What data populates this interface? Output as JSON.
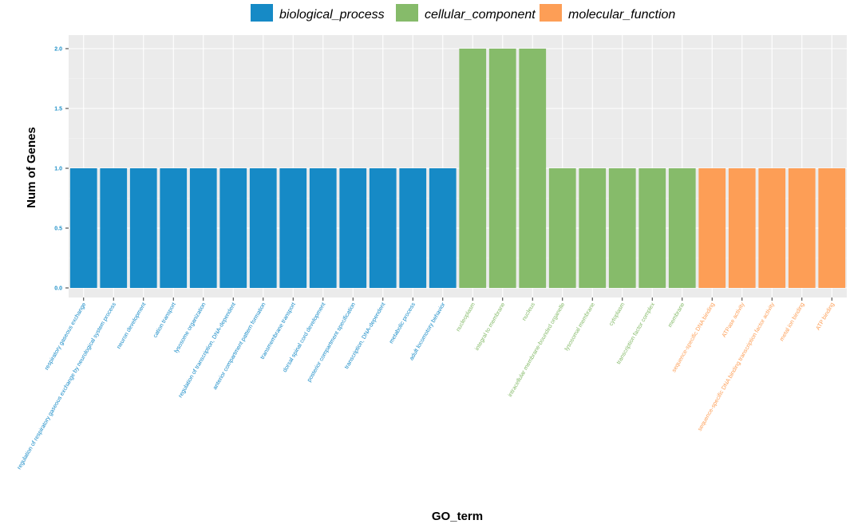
{
  "colors": {
    "panel_bg": "#ebebeb",
    "grid_major": "#ffffff",
    "grid_minor": "#f5f5f5",
    "biological_process": "#168ac6",
    "cellular_component": "#86bb6a",
    "molecular_function": "#fd9e56"
  },
  "chart_data": {
    "type": "bar",
    "title": "",
    "xlabel": "GO_term",
    "ylabel": "Num of Genes",
    "ylim": [
      0,
      2.0
    ],
    "yticks": [
      "0.0",
      "0.5",
      "1.0",
      "1.5",
      "2.0"
    ],
    "grid": true,
    "legend_position": "top",
    "legend": [
      "biological_process",
      "cellular_component",
      "molecular_function"
    ],
    "categories": [
      "respiratory gaseous exchange",
      "regulation of respiratory gaseous exchange by neurological system process",
      "neuron development",
      "cation transport",
      "lysosome organization",
      "regulation of transcription, DNA-dependent",
      "anterior compartment pattern formation",
      "transmembrane transport",
      "dorsal spinal cord development",
      "posterior compartment specification",
      "transcription, DNA-dependent",
      "metabolic process",
      "adult locomotory behavior",
      "nucleoplasm",
      "integral to membrane",
      "nucleus",
      "intracellular membrane-bounded organelle",
      "lysosomal membrane",
      "cytoplasm",
      "transcription factor complex",
      "membrane",
      "sequence-specific DNA binding",
      "ATPase activity",
      "sequence-specific DNA binding transcription factor activity",
      "metal ion binding",
      "ATP binding"
    ],
    "groups": [
      "biological_process",
      "biological_process",
      "biological_process",
      "biological_process",
      "biological_process",
      "biological_process",
      "biological_process",
      "biological_process",
      "biological_process",
      "biological_process",
      "biological_process",
      "biological_process",
      "biological_process",
      "cellular_component",
      "cellular_component",
      "cellular_component",
      "cellular_component",
      "cellular_component",
      "cellular_component",
      "cellular_component",
      "cellular_component",
      "molecular_function",
      "molecular_function",
      "molecular_function",
      "molecular_function",
      "molecular_function"
    ],
    "values": [
      1,
      1,
      1,
      1,
      1,
      1,
      1,
      1,
      1,
      1,
      1,
      1,
      1,
      2,
      2,
      2,
      1,
      1,
      1,
      1,
      1,
      1,
      1,
      1,
      1,
      1
    ]
  }
}
